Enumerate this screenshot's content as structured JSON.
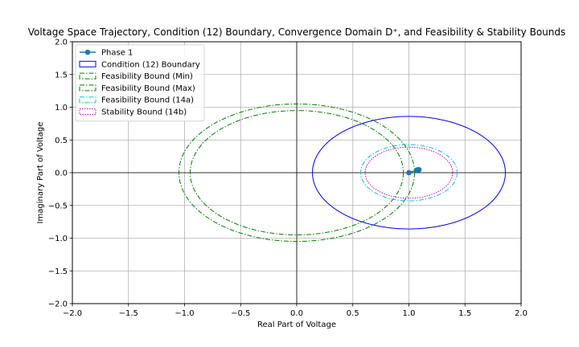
{
  "chart_data": {
    "type": "line",
    "title": "Voltage Space Trajectory, Condition (12) Boundary, Convergence Domain D⁺, and Feasibility & Stability Bounds",
    "xlabel": "Real Part of Voltage",
    "ylabel": "Imaginary Part of Voltage",
    "xlim": [
      -2.0,
      2.0
    ],
    "ylim": [
      -2.0,
      2.0
    ],
    "grid": true,
    "legend_position": "top-left",
    "x_ticks": [
      -2.0,
      -1.5,
      -1.0,
      -0.5,
      0.0,
      0.5,
      1.0,
      1.5,
      2.0
    ],
    "y_ticks": [
      -2.0,
      -1.5,
      -1.0,
      -0.5,
      0.0,
      0.5,
      1.0,
      1.5,
      2.0
    ],
    "x_tick_labels": [
      "−2.0",
      "−1.5",
      "−1.0",
      "−0.5",
      "0.0",
      "0.5",
      "1.0",
      "1.5",
      "2.0"
    ],
    "y_tick_labels": [
      "−2.0",
      "−1.5",
      "−1.0",
      "−0.5",
      "0.0",
      "0.5",
      "1.0",
      "1.5",
      "2.0"
    ],
    "series": [
      {
        "name": "Phase 1",
        "kind": "trajectory",
        "color": "#1f77b4",
        "style": "solid-with-markers",
        "points": [
          [
            1.0,
            0.0
          ],
          [
            1.07,
            0.04
          ],
          [
            1.08,
            0.045
          ],
          [
            1.09,
            0.045
          ]
        ]
      },
      {
        "name": "Condition (12) Boundary",
        "kind": "circle",
        "color": "#0000ff",
        "style": "solid",
        "center": [
          1.0,
          0.0
        ],
        "radius": 0.86
      },
      {
        "name": "Feasibility Bound (Min)",
        "kind": "circle",
        "color": "#008000",
        "style": "dashdot",
        "center": [
          0.0,
          0.0
        ],
        "radius": 0.95
      },
      {
        "name": "Feasibility Bound (Max)",
        "kind": "circle",
        "color": "#008000",
        "style": "dashdot",
        "center": [
          0.0,
          0.0
        ],
        "radius": 1.05
      },
      {
        "name": "Feasibility Bound (14a)",
        "kind": "circle",
        "color": "#17becf",
        "style": "dashdot",
        "center": [
          1.0,
          0.0
        ],
        "radius": 0.43
      },
      {
        "name": "Stability Bound (14b)",
        "kind": "circle",
        "color": "#cc00cc",
        "style": "dotted",
        "center": [
          1.0,
          0.0
        ],
        "radius": 0.39
      }
    ]
  }
}
